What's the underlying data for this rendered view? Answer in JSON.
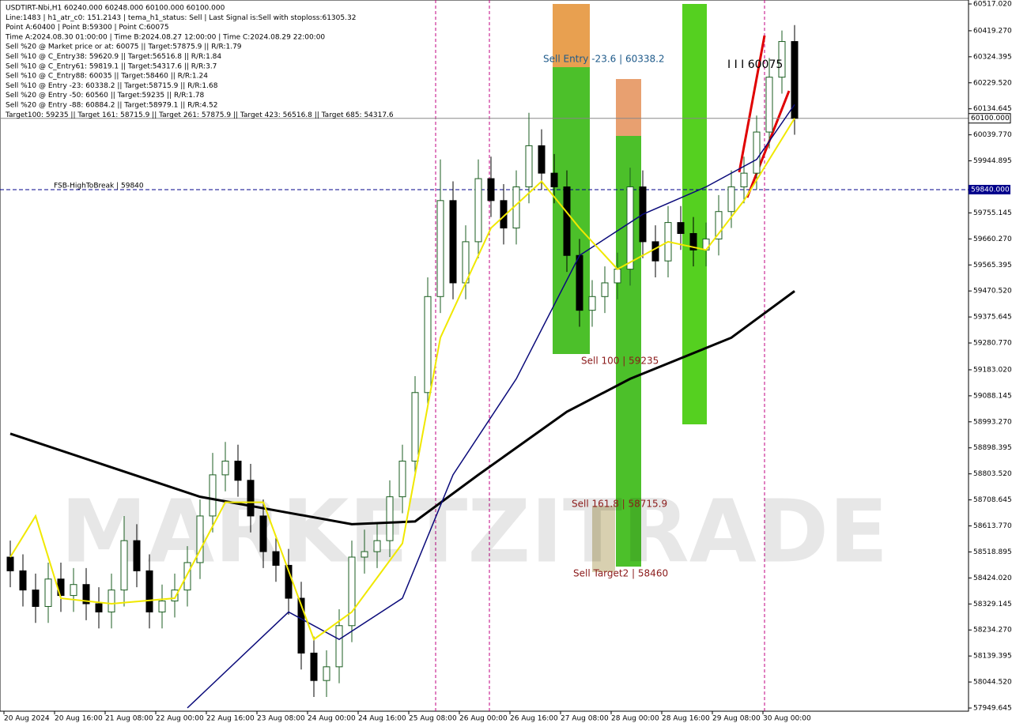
{
  "chart_data": {
    "type": "candlestick",
    "info_lines": [
      "USDTIRT-Nbi,H1  60240.000 60248.000 60100.000 60100.000",
      "Line:1483  | h1_atr_c0: 151.2143  | tema_h1_status: Sell  | Last Signal is:Sell with stoploss:61305.32",
      "Point A:60400  | Point B:59300  | Point C:60075",
      "Time A:2024.08.30 01:00:00  | Time B:2024.08.27 12:00:00  | Time C:2024.08.29 22:00:00",
      "Sell %20 @ Market price or at: 60075  || Target:57875.9  || R/R:1.79",
      "Sell %10 @ C_Entry38: 59620.9  || Target:56516.8  || R/R:1.84",
      "Sell %10 @ C_Entry61: 59819.1  || Target:54317.6  || R/R:3.7",
      "Sell %10 @ C_Entry88: 60035  || Target:58460  || R/R:1.24",
      "Sell %10 @ Entry -23: 60338.2  || Target:58715.9  || R/R:1.68",
      "Sell %20 @ Entry -50: 60560  || Target:59235  || R/R:1.78",
      "Sell %20 @ Entry -88: 60884.2  || Target:58979.1  || R/R:4.52",
      "Target100: 59235  || Target 161: 58715.9  || Target 261: 57875.9  || Target 423: 56516.8  || Target 685: 54317.6"
    ],
    "watermark": "MARKETZITRADE",
    "annotations": [
      "Sell Entry -23.6 | 60338.2",
      "I I I 60075",
      "Sell 100 | 59235",
      "Sell 161.8 | 58715.9",
      "Sell Target2 | 58460"
    ],
    "level": {
      "value": 59840,
      "text": "FSB-HighToBreak | 59840",
      "label": "59840.000",
      "color": "#00008b"
    },
    "price_line": {
      "value": 60100,
      "label": "60100.000"
    },
    "xlim": [
      0,
      63
    ],
    "xticks": [
      {
        "value": 0,
        "label": "20 Aug 2024"
      },
      {
        "value": 4,
        "label": "20 Aug 16:00"
      },
      {
        "value": 8,
        "label": "21 Aug 08:00"
      },
      {
        "value": 12,
        "label": "22 Aug 00:00"
      },
      {
        "value": 16,
        "label": "22 Aug 16:00"
      },
      {
        "value": 20,
        "label": "23 Aug 08:00"
      },
      {
        "value": 24,
        "label": "24 Aug 00:00"
      },
      {
        "value": 28,
        "label": "24 Aug 16:00"
      },
      {
        "value": 32,
        "label": "25 Aug 08:00"
      },
      {
        "value": 36,
        "label": "26 Aug 00:00"
      },
      {
        "value": 40,
        "label": "26 Aug 16:00"
      },
      {
        "value": 44,
        "label": "27 Aug 08:00"
      },
      {
        "value": 48,
        "label": "28 Aug 00:00"
      },
      {
        "value": 52,
        "label": "28 Aug 16:00"
      },
      {
        "value": 56,
        "label": "29 Aug 08:00"
      },
      {
        "value": 60,
        "label": "30 Aug 00:00"
      }
    ],
    "ylim": [
      57949.645,
      60517.02
    ],
    "yticks": [
      {
        "value": 60517.02,
        "label": "60517.020"
      },
      {
        "value": 60419.27,
        "label": "60419.270"
      },
      {
        "value": 60324.395,
        "label": "60324.395"
      },
      {
        "value": 60229.52,
        "label": "60229.520"
      },
      {
        "value": 60134.645,
        "label": "60134.645"
      },
      {
        "value": 60039.77,
        "label": "60039.770"
      },
      {
        "value": 59944.895,
        "label": "59944.895"
      },
      {
        "value": 59755.145,
        "label": "59755.145"
      },
      {
        "value": 59660.27,
        "label": "59660.270"
      },
      {
        "value": 59565.395,
        "label": "59565.395"
      },
      {
        "value": 59470.52,
        "label": "59470.520"
      },
      {
        "value": 59375.645,
        "label": "59375.645"
      },
      {
        "value": 59280.77,
        "label": "59280.770"
      },
      {
        "value": 59183.02,
        "label": "59183.020"
      },
      {
        "value": 59088.145,
        "label": "59088.145"
      },
      {
        "value": 58993.27,
        "label": "58993.270"
      },
      {
        "value": 58898.395,
        "label": "58898.395"
      },
      {
        "value": 58803.52,
        "label": "58803.520"
      },
      {
        "value": 58708.645,
        "label": "58708.645"
      },
      {
        "value": 58613.77,
        "label": "58613.770"
      },
      {
        "value": 58518.895,
        "label": "58518.895"
      },
      {
        "value": 58424.02,
        "label": "58424.020"
      },
      {
        "value": 58329.145,
        "label": "58329.145"
      },
      {
        "value": 58234.27,
        "label": "58234.270"
      },
      {
        "value": 58139.395,
        "label": "58139.395"
      },
      {
        "value": 58044.52,
        "label": "58044.520"
      },
      {
        "value": 57949.645,
        "label": "57949.645"
      }
    ],
    "up_color": "#1b5e20",
    "down_color": "#000000",
    "open": [
      58500,
      58450,
      58380,
      58320,
      58420,
      58360,
      58400,
      58330,
      58300,
      58380,
      58560,
      58450,
      58300,
      58340,
      58380,
      58480,
      58650,
      58800,
      58850,
      58780,
      58650,
      58520,
      58470,
      58350,
      58150,
      58050,
      58100,
      58250,
      58500,
      58520,
      58560,
      58720,
      58850,
      59100,
      59450,
      59800,
      59500,
      59650,
      59880,
      59800,
      59700,
      59850,
      60000,
      59900,
      59850,
      59600,
      59400,
      59450,
      59500,
      59550,
      59850,
      59650,
      59580,
      59720,
      59680,
      59620,
      59660,
      59760,
      59850,
      59900,
      60050,
      60250,
      60380
    ],
    "high": [
      58560,
      58510,
      58440,
      58480,
      58480,
      58460,
      58460,
      58390,
      58440,
      58650,
      58620,
      58510,
      58400,
      58440,
      58540,
      58710,
      58880,
      58920,
      58910,
      58840,
      58710,
      58580,
      58530,
      58410,
      58210,
      58160,
      58310,
      58560,
      58600,
      58620,
      58780,
      58910,
      59160,
      59520,
      59950,
      59870,
      59710,
      59950,
      59960,
      59860,
      59910,
      60120,
      60060,
      59970,
      59910,
      59660,
      59510,
      59560,
      59610,
      59920,
      59910,
      59710,
      59780,
      59780,
      59740,
      59720,
      59820,
      59910,
      59960,
      60110,
      60320,
      60420,
      60440
    ],
    "low": [
      58390,
      58320,
      58260,
      58260,
      58300,
      58300,
      58270,
      58240,
      58240,
      58320,
      58390,
      58240,
      58240,
      58280,
      58320,
      58420,
      58590,
      58740,
      58720,
      58590,
      58460,
      58410,
      58290,
      58090,
      57990,
      57990,
      58040,
      58190,
      58440,
      58460,
      58500,
      58660,
      58790,
      59040,
      59390,
      59440,
      59440,
      59590,
      59740,
      59640,
      59640,
      59790,
      59840,
      59790,
      59540,
      59340,
      59340,
      59390,
      59440,
      59490,
      59590,
      59520,
      59520,
      59620,
      59560,
      59560,
      59600,
      59700,
      59790,
      59840,
      59990,
      60190,
      60040
    ],
    "close": [
      58450,
      58380,
      58320,
      58420,
      58360,
      58400,
      58330,
      58300,
      58380,
      58560,
      58450,
      58300,
      58340,
      58380,
      58480,
      58650,
      58800,
      58850,
      58780,
      58650,
      58520,
      58470,
      58350,
      58150,
      58050,
      58100,
      58250,
      58500,
      58520,
      58560,
      58720,
      58850,
      59100,
      59450,
      59800,
      59500,
      59650,
      59880,
      59800,
      59700,
      59850,
      60000,
      59900,
      59850,
      59600,
      59400,
      59450,
      59500,
      59550,
      59850,
      59650,
      59580,
      59720,
      59680,
      59620,
      59660,
      59760,
      59850,
      59900,
      60050,
      60250,
      60380,
      60100
    ],
    "lines": [
      {
        "color": "#000000",
        "width": 3,
        "x": [
          0,
          15,
          27,
          32,
          37,
          44,
          49,
          57,
          62
        ],
        "values": [
          58950,
          58720,
          58620,
          58630,
          58800,
          59030,
          59150,
          59300,
          59470
        ]
      },
      {
        "color": "#0a0a7a",
        "width": 1.5,
        "x": [
          14,
          22,
          26,
          31,
          35,
          40,
          45,
          50,
          55,
          59,
          62
        ],
        "values": [
          57950,
          58300,
          58200,
          58350,
          58800,
          59150,
          59600,
          59750,
          59850,
          59950,
          60150
        ]
      },
      {
        "color": "#f0e800",
        "width": 2,
        "x": [
          0,
          2,
          4,
          8,
          13,
          17,
          20,
          24,
          27,
          31,
          34,
          38,
          42,
          45,
          48,
          52,
          55,
          58,
          60,
          62
        ],
        "values": [
          58500,
          58650,
          58350,
          58330,
          58350,
          58700,
          58700,
          58200,
          58300,
          58550,
          59300,
          59700,
          59870,
          59700,
          59550,
          59650,
          59620,
          59800,
          59950,
          60100
        ]
      }
    ]
  }
}
